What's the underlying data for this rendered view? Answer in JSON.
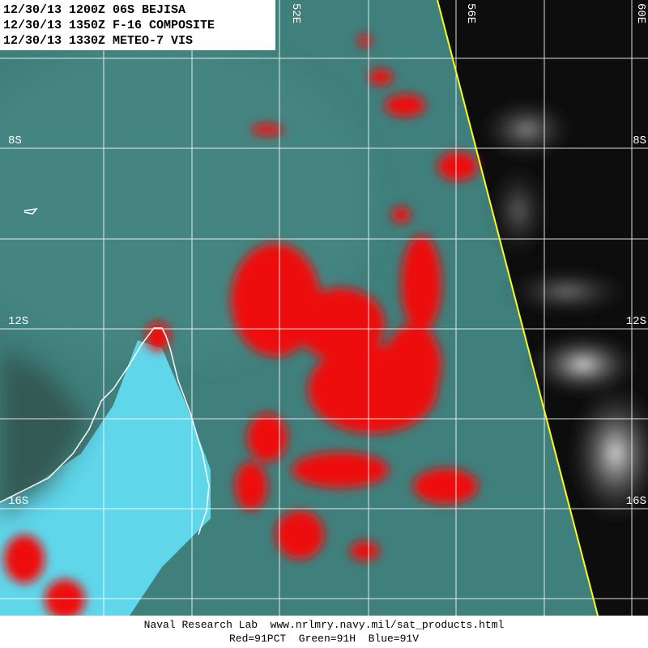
{
  "header": {
    "lines": [
      "12/30/13 1200Z 06S BEJISA",
      "12/30/13 1350Z F-16 COMPOSITE",
      "12/30/13 1330Z METEO-7 VIS"
    ]
  },
  "longitude_labels": [
    "52E",
    "56E",
    "60E"
  ],
  "latitude_labels": [
    "8S",
    "12S",
    "16S"
  ],
  "footer": {
    "lines": [
      "Naval Research Lab  www.nrlmry.navy.mil/sat_products.html",
      "Red=91PCT  Green=91H  Blue=91V"
    ]
  }
}
